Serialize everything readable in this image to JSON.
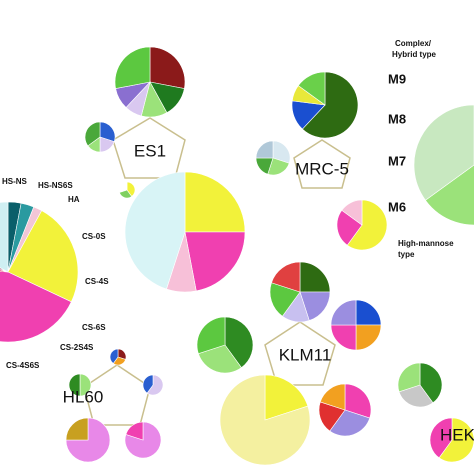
{
  "chart_data": [
    {
      "type": "pie",
      "categories": [
        "HS-NS",
        "HS-NS6S",
        "HA",
        "CS-0S",
        "CS-4S",
        "CS-6S",
        "CS-2S4S",
        "CS-4S6S",
        null
      ],
      "values": [
        3,
        3,
        2,
        24,
        44,
        3,
        2,
        2,
        17
      ],
      "colors": [
        "#0a5f6a",
        "#2a9aa0",
        "#f2c6d6",
        "#f2f23a",
        "#f040b0",
        "#e02060",
        "#b01050",
        "#7a1a40",
        "#cfeff2"
      ]
    },
    {
      "type": "pie",
      "values": [
        28,
        14,
        12,
        8,
        10,
        28
      ],
      "colors": [
        "#8b1a1a",
        "#1f7a1f",
        "#9be27a",
        "#d9c8f0",
        "#8a6fd0",
        "#5cc840"
      ]
    },
    {
      "type": "pie",
      "values": [
        30,
        20,
        15,
        35
      ],
      "colors": [
        "#2a5fd0",
        "#d9c8f0",
        "#9be27a",
        "#4aa83a"
      ]
    },
    {
      "type": "pie",
      "values": [
        40,
        30,
        30
      ],
      "colors": [
        "#f2f23a",
        "#7fd060",
        "#ffffff"
      ]
    },
    {
      "type": "pie",
      "values": [
        25,
        22,
        8,
        45
      ],
      "colors": [
        "#f2f23a",
        "#f040b0",
        "#f7c0d8",
        "#d8f4f6"
      ]
    },
    {
      "type": "pie",
      "values": [
        62,
        15,
        8,
        15
      ],
      "colors": [
        "#2e6b12",
        "#1a4fd0",
        "#e8e83a",
        "#6ad04a"
      ]
    },
    {
      "type": "pie",
      "values": [
        30,
        25,
        20,
        25
      ],
      "colors": [
        "#d8e8f0",
        "#9be27a",
        "#4aa83a",
        "#b0c8d8"
      ]
    },
    {
      "type": "pie",
      "values": [
        60,
        25,
        15
      ],
      "colors": [
        "#f2f23a",
        "#f040b0",
        "#f7c0d8"
      ]
    },
    {
      "type": "pie",
      "values": [
        20,
        25,
        20,
        35
      ],
      "colors": [
        "#2e6b12",
        "#5cc840",
        "#9be27a",
        "#c8e8c0"
      ]
    },
    {
      "type": "pie",
      "values": [
        25,
        20,
        15,
        20,
        20
      ],
      "colors": [
        "#2e6b12",
        "#9b8ee0",
        "#c8c0f0",
        "#5cc840",
        "#e04040"
      ]
    },
    {
      "type": "pie",
      "values": [
        40,
        30,
        30
      ],
      "colors": [
        "#2e8b22",
        "#9be27a",
        "#5cc840"
      ]
    },
    {
      "type": "pie",
      "values": [
        25,
        25,
        25,
        25
      ],
      "colors": [
        "#1a4fd0",
        "#f2a020",
        "#f040b0",
        "#9b8ee0"
      ]
    },
    {
      "type": "pie",
      "values": [
        20,
        80
      ],
      "colors": [
        "#f2f23a",
        "#f4f0a0"
      ]
    },
    {
      "type": "pie",
      "values": [
        30,
        30,
        20,
        20
      ],
      "colors": [
        "#f040b0",
        "#9b8ee0",
        "#e03030",
        "#f2a020"
      ]
    },
    {
      "type": "pie",
      "values": [
        30,
        30,
        40
      ],
      "colors": [
        "#8b1a1a",
        "#f2a020",
        "#2a5fd0"
      ]
    },
    {
      "type": "pie",
      "values": [
        50,
        50
      ],
      "colors": [
        "#9be27a",
        "#2e8b22"
      ]
    },
    {
      "type": "pie",
      "values": [
        60,
        40
      ],
      "colors": [
        "#d9c8f0",
        "#2a5fd0"
      ]
    },
    {
      "type": "pie",
      "values": [
        75,
        25
      ],
      "colors": [
        "#e888e8",
        "#c8a020"
      ]
    },
    {
      "type": "pie",
      "values": [
        80,
        20
      ],
      "colors": [
        "#e888e8",
        "#f040b0"
      ]
    },
    {
      "type": "pie",
      "values": [
        40,
        30,
        30
      ],
      "colors": [
        "#2e8b22",
        "#c8c8c8",
        "#9be27a"
      ]
    },
    {
      "type": "pie",
      "values": [
        60,
        40
      ],
      "colors": [
        "#f2f23a",
        "#f040b0"
      ]
    }
  ],
  "annotations": [
    "ES1",
    "MRC-5",
    "KLM11",
    "HL60",
    "HEK",
    "Complex/",
    "Hybrid type",
    "M9",
    "M8",
    "M7",
    "M6",
    "High-mannose",
    "type"
  ]
}
